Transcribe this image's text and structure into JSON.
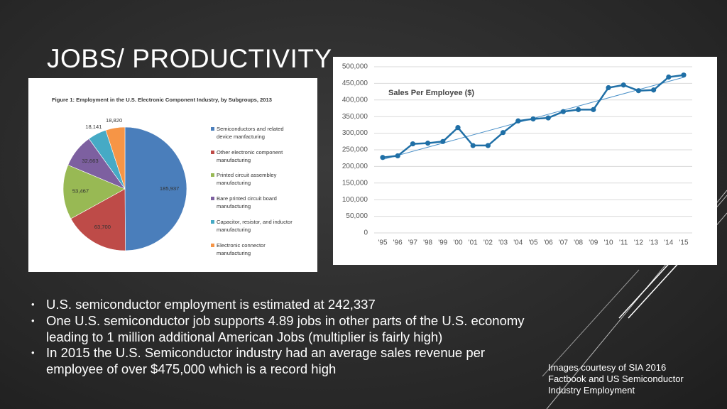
{
  "slide_title": "JOBS/ PRODUCTIVITY",
  "chart_data": [
    {
      "type": "pie",
      "title": "Figure 1: Employment in the U.S. Electronic Component Industry, by Subgroups, 2013",
      "categories": [
        "Semiconductors and related device manfacturing",
        "Other electronic component manufacturing",
        "Printed circuit assembley manufacturing",
        "Bare printed circuit board manufacturing",
        "Capacitor, resistor, and inductor manufacturing",
        "Electronic connector manufacturing"
      ],
      "values": [
        185937,
        63700,
        53467,
        32663,
        18141,
        18820
      ],
      "value_labels": [
        "185,937",
        "63,700",
        "53,467",
        "32,663",
        "18,141",
        "18,820"
      ],
      "colors": [
        "#4a7ebb",
        "#be4b48",
        "#98b954",
        "#7d60a0",
        "#46aac5",
        "#f69546"
      ],
      "legend": "right"
    },
    {
      "type": "line",
      "title": "Sales Per Employee ($)",
      "categories": [
        "'95",
        "'96",
        "'97",
        "'98",
        "'99",
        "'00",
        "'01",
        "'02",
        "'03",
        "'04",
        "'05",
        "'06",
        "'07",
        "'08",
        "'09",
        "'10",
        "'11",
        "'12",
        "'13",
        "'14",
        "'15"
      ],
      "values": [
        227000,
        232000,
        268000,
        270000,
        275000,
        317000,
        263000,
        263000,
        302000,
        337000,
        343000,
        346000,
        365000,
        371000,
        371000,
        437000,
        445000,
        428000,
        430000,
        469000,
        475000
      ],
      "color": "#1f6fa6",
      "trendline": true,
      "trend_color": "#4a90c8",
      "ylim": [
        0,
        500000
      ],
      "yticks": [
        0,
        {
          "value": 50000,
          "label": "50,000"
        },
        {
          "value": 100000,
          "label": "100,000"
        },
        {
          "value": 150000,
          "label": "150,000"
        },
        {
          "value": 200000,
          "label": "200,000"
        },
        {
          "value": 250000,
          "label": "250,000"
        },
        {
          "value": 300000,
          "label": "300,000"
        },
        {
          "value": 350000,
          "label": "350,000"
        },
        {
          "value": 400000,
          "label": "400,000"
        },
        {
          "value": 450000,
          "label": "450,000"
        },
        {
          "value": 500000,
          "label": "500,000"
        }
      ],
      "grid": true
    }
  ],
  "bullets": [
    "U.S. semiconductor employment is estimated at 242,337",
    "One U.S. semiconductor job supports 4.89 jobs in other parts of the U.S. economy leading to 1 million additional American Jobs (multiplier is fairly high)",
    "In 2015 the U.S. Semiconductor industry had an average sales revenue per employee of over $475,000 which is a record high"
  ],
  "credit": "Images courtesy of SIA 2016 Factbook and US Semiconductor Industry Employment"
}
